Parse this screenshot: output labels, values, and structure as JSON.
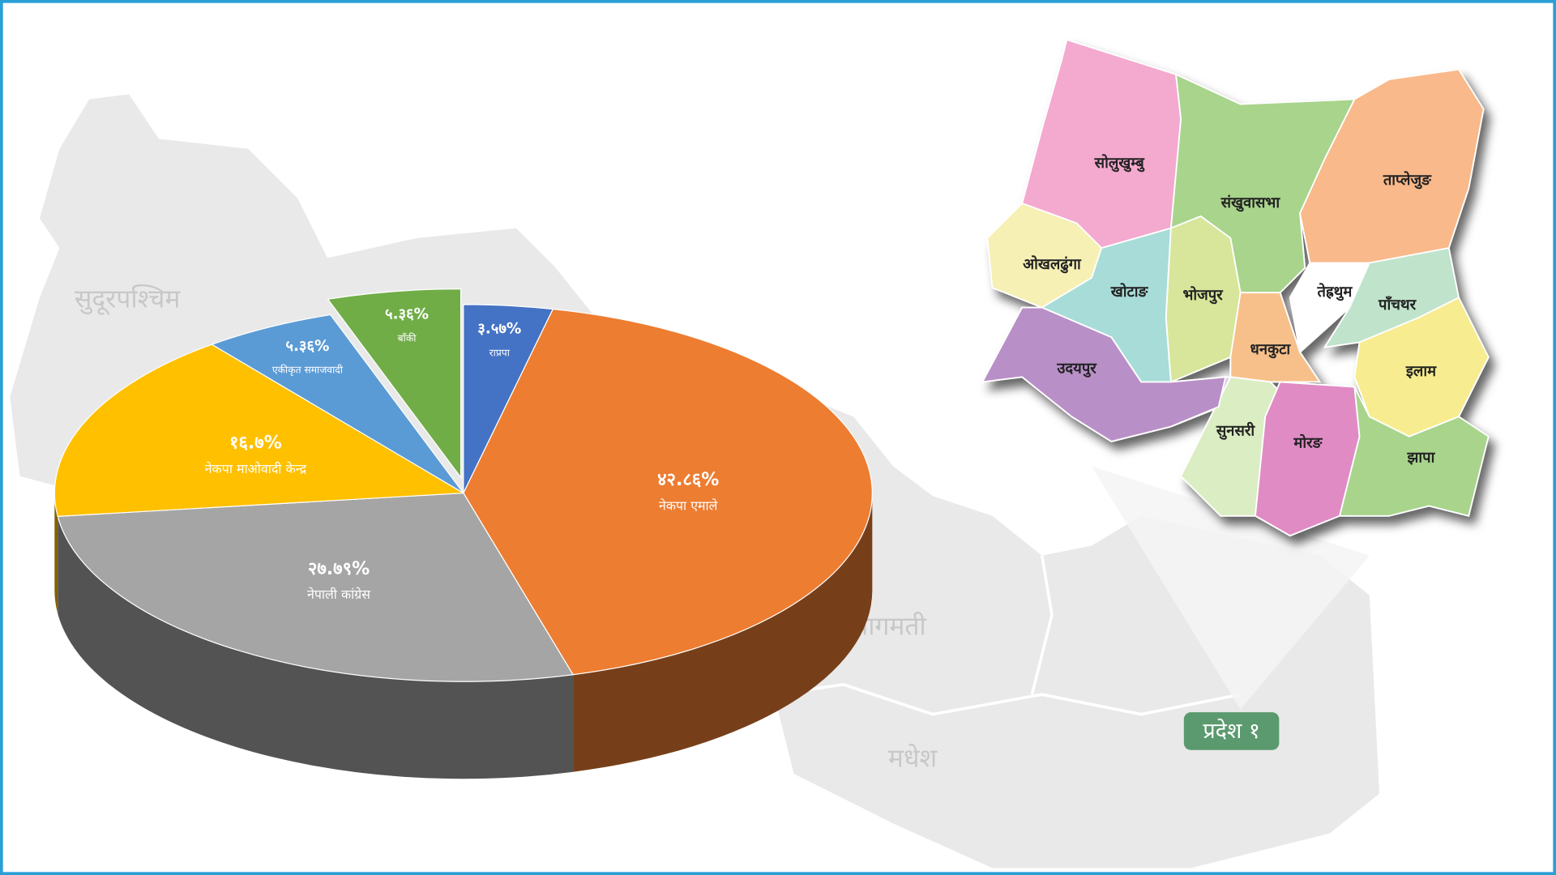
{
  "chart_data": {
    "type": "pie",
    "categories": [
      "राप्रपा",
      "नेकपा एमाले",
      "नेपाली कांग्रेस",
      "नेकपा माओवादी केन्द्र",
      "एकीकृत समाजवादी",
      "बाँकी"
    ],
    "values": [
      3.57,
      42.86,
      27.79,
      16.7,
      5.36,
      5.36
    ],
    "value_labels": [
      "३.५७%",
      "४२.८६%",
      "२७.७९%",
      "१६.७%",
      "५.३६%",
      "५.३६%"
    ],
    "colors": [
      "#4472c4",
      "#ed7d31",
      "#a5a5a5",
      "#ffc000",
      "#5b9bd5",
      "#70ad47"
    ],
    "exploded": [
      false,
      false,
      false,
      false,
      false,
      true
    ]
  },
  "map": {
    "regions": [
      "सुदूरपश्चिम",
      "बागमती",
      "मधेश"
    ],
    "province": "प्रदेश १",
    "districts": [
      "सोलुखुम्बु",
      "संखुवासभा",
      "ताप्लेजुङ",
      "ओखलढुंगा",
      "खोटाङ",
      "भोजपुर",
      "तेह्रथुम",
      "पाँचथर",
      "उदयपुर",
      "धनकुटा",
      "इलाम",
      "सुनसरी",
      "मोरङ",
      "झापा"
    ]
  }
}
